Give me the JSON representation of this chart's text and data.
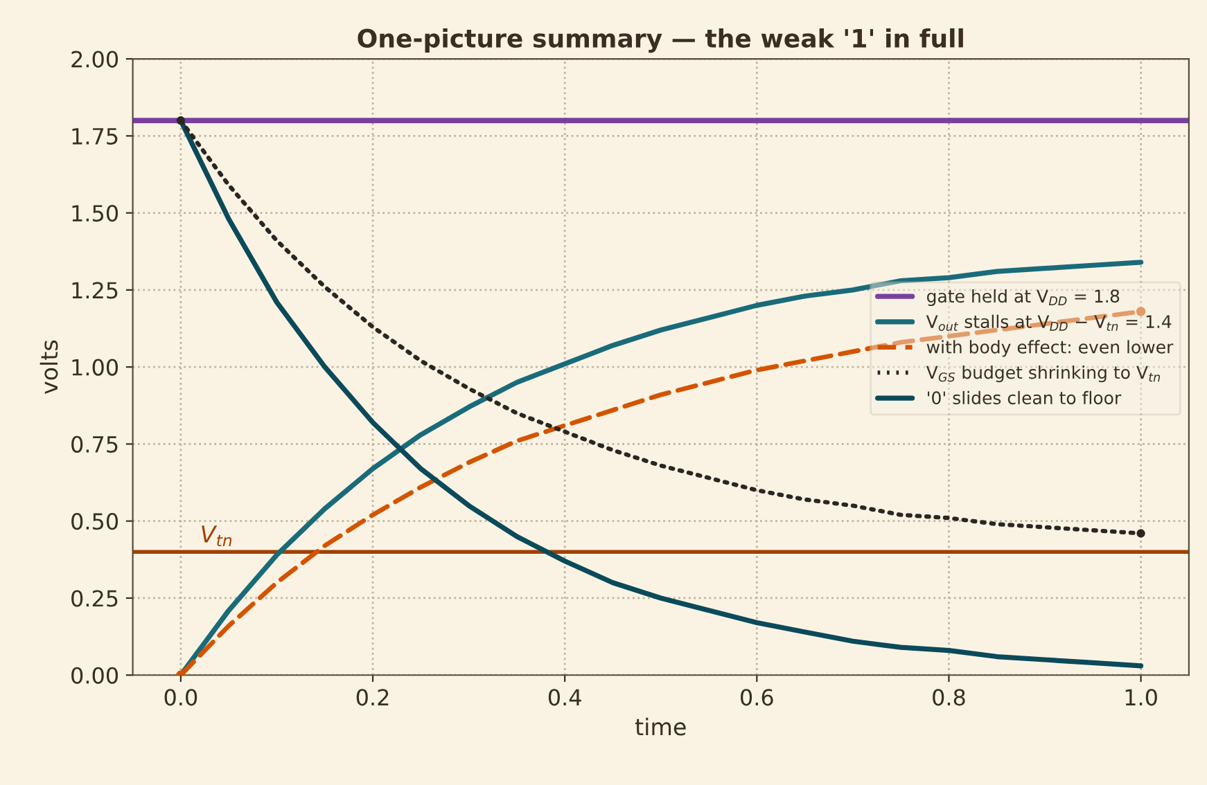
{
  "chart_data": {
    "type": "line",
    "title": "One-picture summary — the weak '1' in full",
    "xlabel": "time",
    "ylabel": "volts",
    "x": [
      0,
      0.05,
      0.1,
      0.15,
      0.2,
      0.25,
      0.3,
      0.35,
      0.4,
      0.45,
      0.5,
      0.55,
      0.6,
      0.65,
      0.7,
      0.75,
      0.8,
      0.85,
      0.9,
      0.95,
      1.0
    ],
    "series": [
      {
        "name": "V$_{out}$ stalls at V$_{DD}$ − V$_{tn}$ = 1.4",
        "color": "#1a6b7a",
        "line_style": "solid",
        "values": [
          0,
          0.21,
          0.39,
          0.54,
          0.67,
          0.78,
          0.87,
          0.95,
          1.01,
          1.07,
          1.12,
          1.16,
          1.2,
          1.23,
          1.25,
          1.28,
          1.29,
          1.31,
          1.32,
          1.33,
          1.34
        ]
      },
      {
        "name": "with body effect: even lower",
        "color": "#d35400",
        "line_style": "dashed",
        "values": [
          0,
          0.16,
          0.3,
          0.42,
          0.52,
          0.61,
          0.69,
          0.76,
          0.81,
          0.86,
          0.91,
          0.95,
          0.99,
          1.02,
          1.05,
          1.08,
          1.1,
          1.12,
          1.14,
          1.16,
          1.18
        ]
      },
      {
        "name": "V$_{GS}$ budget shrinking to V$_{tn}$",
        "color": "#2b2622",
        "line_style": "dotted",
        "values": [
          1.8,
          1.59,
          1.41,
          1.26,
          1.13,
          1.02,
          0.93,
          0.85,
          0.79,
          0.73,
          0.68,
          0.64,
          0.6,
          0.57,
          0.55,
          0.52,
          0.51,
          0.49,
          0.48,
          0.47,
          0.46
        ]
      },
      {
        "name": "'0' slides clean to floor",
        "color": "#0b4a5a",
        "line_style": "solid",
        "values": [
          1.8,
          1.48,
          1.21,
          1.0,
          0.82,
          0.67,
          0.55,
          0.45,
          0.37,
          0.3,
          0.25,
          0.21,
          0.17,
          0.14,
          0.11,
          0.09,
          0.08,
          0.06,
          0.05,
          0.04,
          0.03
        ]
      }
    ],
    "ref_lines": [
      {
        "axis": "y",
        "value": 1.8,
        "label": "gate held at V$_{DD}$ = 1.8",
        "color": "#7b3fa0",
        "line_style": "solid"
      },
      {
        "axis": "y",
        "value": 0.4,
        "label": "V$_{tn}$",
        "color": "#a04000",
        "line_style": "solid"
      }
    ],
    "xlim": [
      -0.05,
      1.05
    ],
    "xticks": [
      {
        "value": 0,
        "label": "0.0"
      },
      0.2,
      0.4,
      0.6,
      0.8,
      {
        "value": 1,
        "label": "1.0"
      }
    ],
    "ylim": [
      0,
      2
    ],
    "yticks": [
      {
        "value": 0,
        "label": "0.00"
      },
      {
        "value": 0.25,
        "label": "0.25"
      },
      {
        "value": 0.5,
        "label": "0.50"
      },
      {
        "value": 0.75,
        "label": "0.75"
      },
      {
        "value": 1,
        "label": "1.00"
      },
      {
        "value": 1.25,
        "label": "1.25"
      },
      {
        "value": 1.5,
        "label": "1.50"
      },
      {
        "value": 1.75,
        "label": "1.75"
      },
      {
        "value": 2,
        "label": "2.00"
      }
    ],
    "grid": true,
    "legend": "right",
    "marker": "none"
  }
}
